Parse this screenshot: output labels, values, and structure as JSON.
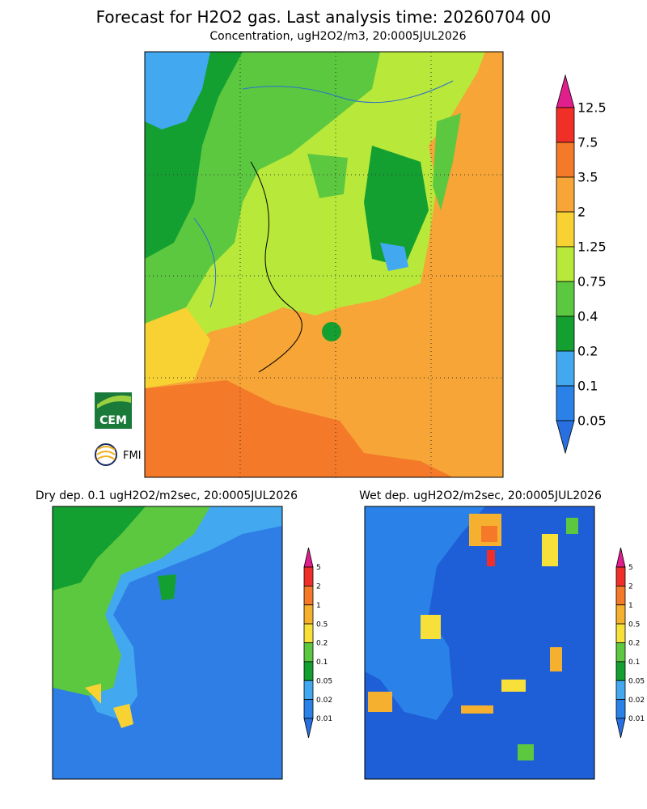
{
  "header": {
    "title": "Forecast for H2O2 gas. Last analysis time: 20260704 00",
    "subtitle": "Concentration, ugH2O2/m3, 20:0005JUL2026"
  },
  "main_legend": {
    "labels": [
      "12.5",
      "7.5",
      "3.5",
      "2",
      "1.25",
      "0.75",
      "0.4",
      "0.2",
      "0.1",
      "0.05"
    ],
    "colors": [
      "#e01e8c",
      "#f03028",
      "#f47a2a",
      "#f6a536",
      "#f8d232",
      "#b8e83a",
      "#5cc840",
      "#14a030",
      "#42a8f0",
      "#2a82e8",
      "#2870e0"
    ]
  },
  "panels": [
    {
      "title": "Dry dep. 0.1 ugH2O2/m2sec, 20:0005JUL2026",
      "legend": {
        "labels": [
          "5",
          "2",
          "1",
          "0.5",
          "0.2",
          "0.1",
          "0.05",
          "0.02",
          "0.01"
        ],
        "colors": [
          "#e01e8c",
          "#f03028",
          "#f47a2a",
          "#f6b030",
          "#f8e03a",
          "#5cc840",
          "#14a030",
          "#42a8f0",
          "#2a82e8",
          "#2870e0"
        ]
      }
    },
    {
      "title": "Wet dep. ugH2O2/m2sec, 20:0005JUL2026",
      "legend": {
        "labels": [
          "5",
          "2",
          "1",
          "0.5",
          "0.2",
          "0.1",
          "0.05",
          "0.02",
          "0.01"
        ],
        "colors": [
          "#e01e8c",
          "#f03028",
          "#f47a2a",
          "#f6b030",
          "#f8e03a",
          "#5cc840",
          "#14a030",
          "#42a8f0",
          "#2a82e8",
          "#2870e0"
        ]
      }
    }
  ],
  "logos": {
    "cem": "CEM",
    "fmi": "FMI"
  }
}
